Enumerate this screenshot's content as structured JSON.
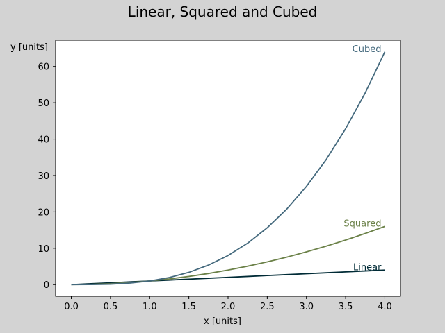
{
  "chart_data": {
    "type": "line",
    "title": "Linear, Squared and Cubed",
    "xlabel": "x [units]",
    "ylabel": "y [units]",
    "xlim": [
      -0.2,
      4.2
    ],
    "ylim": [
      -3.2,
      67.2
    ],
    "grid": false,
    "xticks": [
      0.0,
      0.5,
      1.0,
      1.5,
      2.0,
      2.5,
      3.0,
      3.5,
      4.0
    ],
    "xtick_labels": [
      "0.0",
      "0.5",
      "1.0",
      "1.5",
      "2.0",
      "2.5",
      "3.0",
      "3.5",
      "4.0"
    ],
    "yticks": [
      0,
      10,
      20,
      30,
      40,
      50,
      60
    ],
    "ytick_labels": [
      "0",
      "10",
      "20",
      "30",
      "40",
      "50",
      "60"
    ],
    "x": [
      0.0,
      0.25,
      0.5,
      0.75,
      1.0,
      1.25,
      1.5,
      1.75,
      2.0,
      2.25,
      2.5,
      2.75,
      3.0,
      3.25,
      3.5,
      3.75,
      4.0
    ],
    "series": [
      {
        "name": "Linear",
        "color": "#002b36",
        "values": [
          0.0,
          0.25,
          0.5,
          0.75,
          1.0,
          1.25,
          1.5,
          1.75,
          2.0,
          2.25,
          2.5,
          2.75,
          3.0,
          3.25,
          3.5,
          3.75,
          4.0
        ]
      },
      {
        "name": "Squared",
        "color": "#6b8148",
        "values": [
          0.0,
          0.0625,
          0.25,
          0.5625,
          1.0,
          1.5625,
          2.25,
          3.0625,
          4.0,
          5.0625,
          6.25,
          7.5625,
          9.0,
          10.5625,
          12.25,
          14.0625,
          16.0
        ]
      },
      {
        "name": "Cubed",
        "color": "#44697d",
        "values": [
          0.0,
          0.015625,
          0.125,
          0.421875,
          1.0,
          1.953125,
          3.375,
          5.359375,
          8.0,
          11.390625,
          15.625,
          20.796875,
          27.0,
          34.328125,
          42.875,
          52.734375,
          64.0
        ]
      }
    ]
  }
}
